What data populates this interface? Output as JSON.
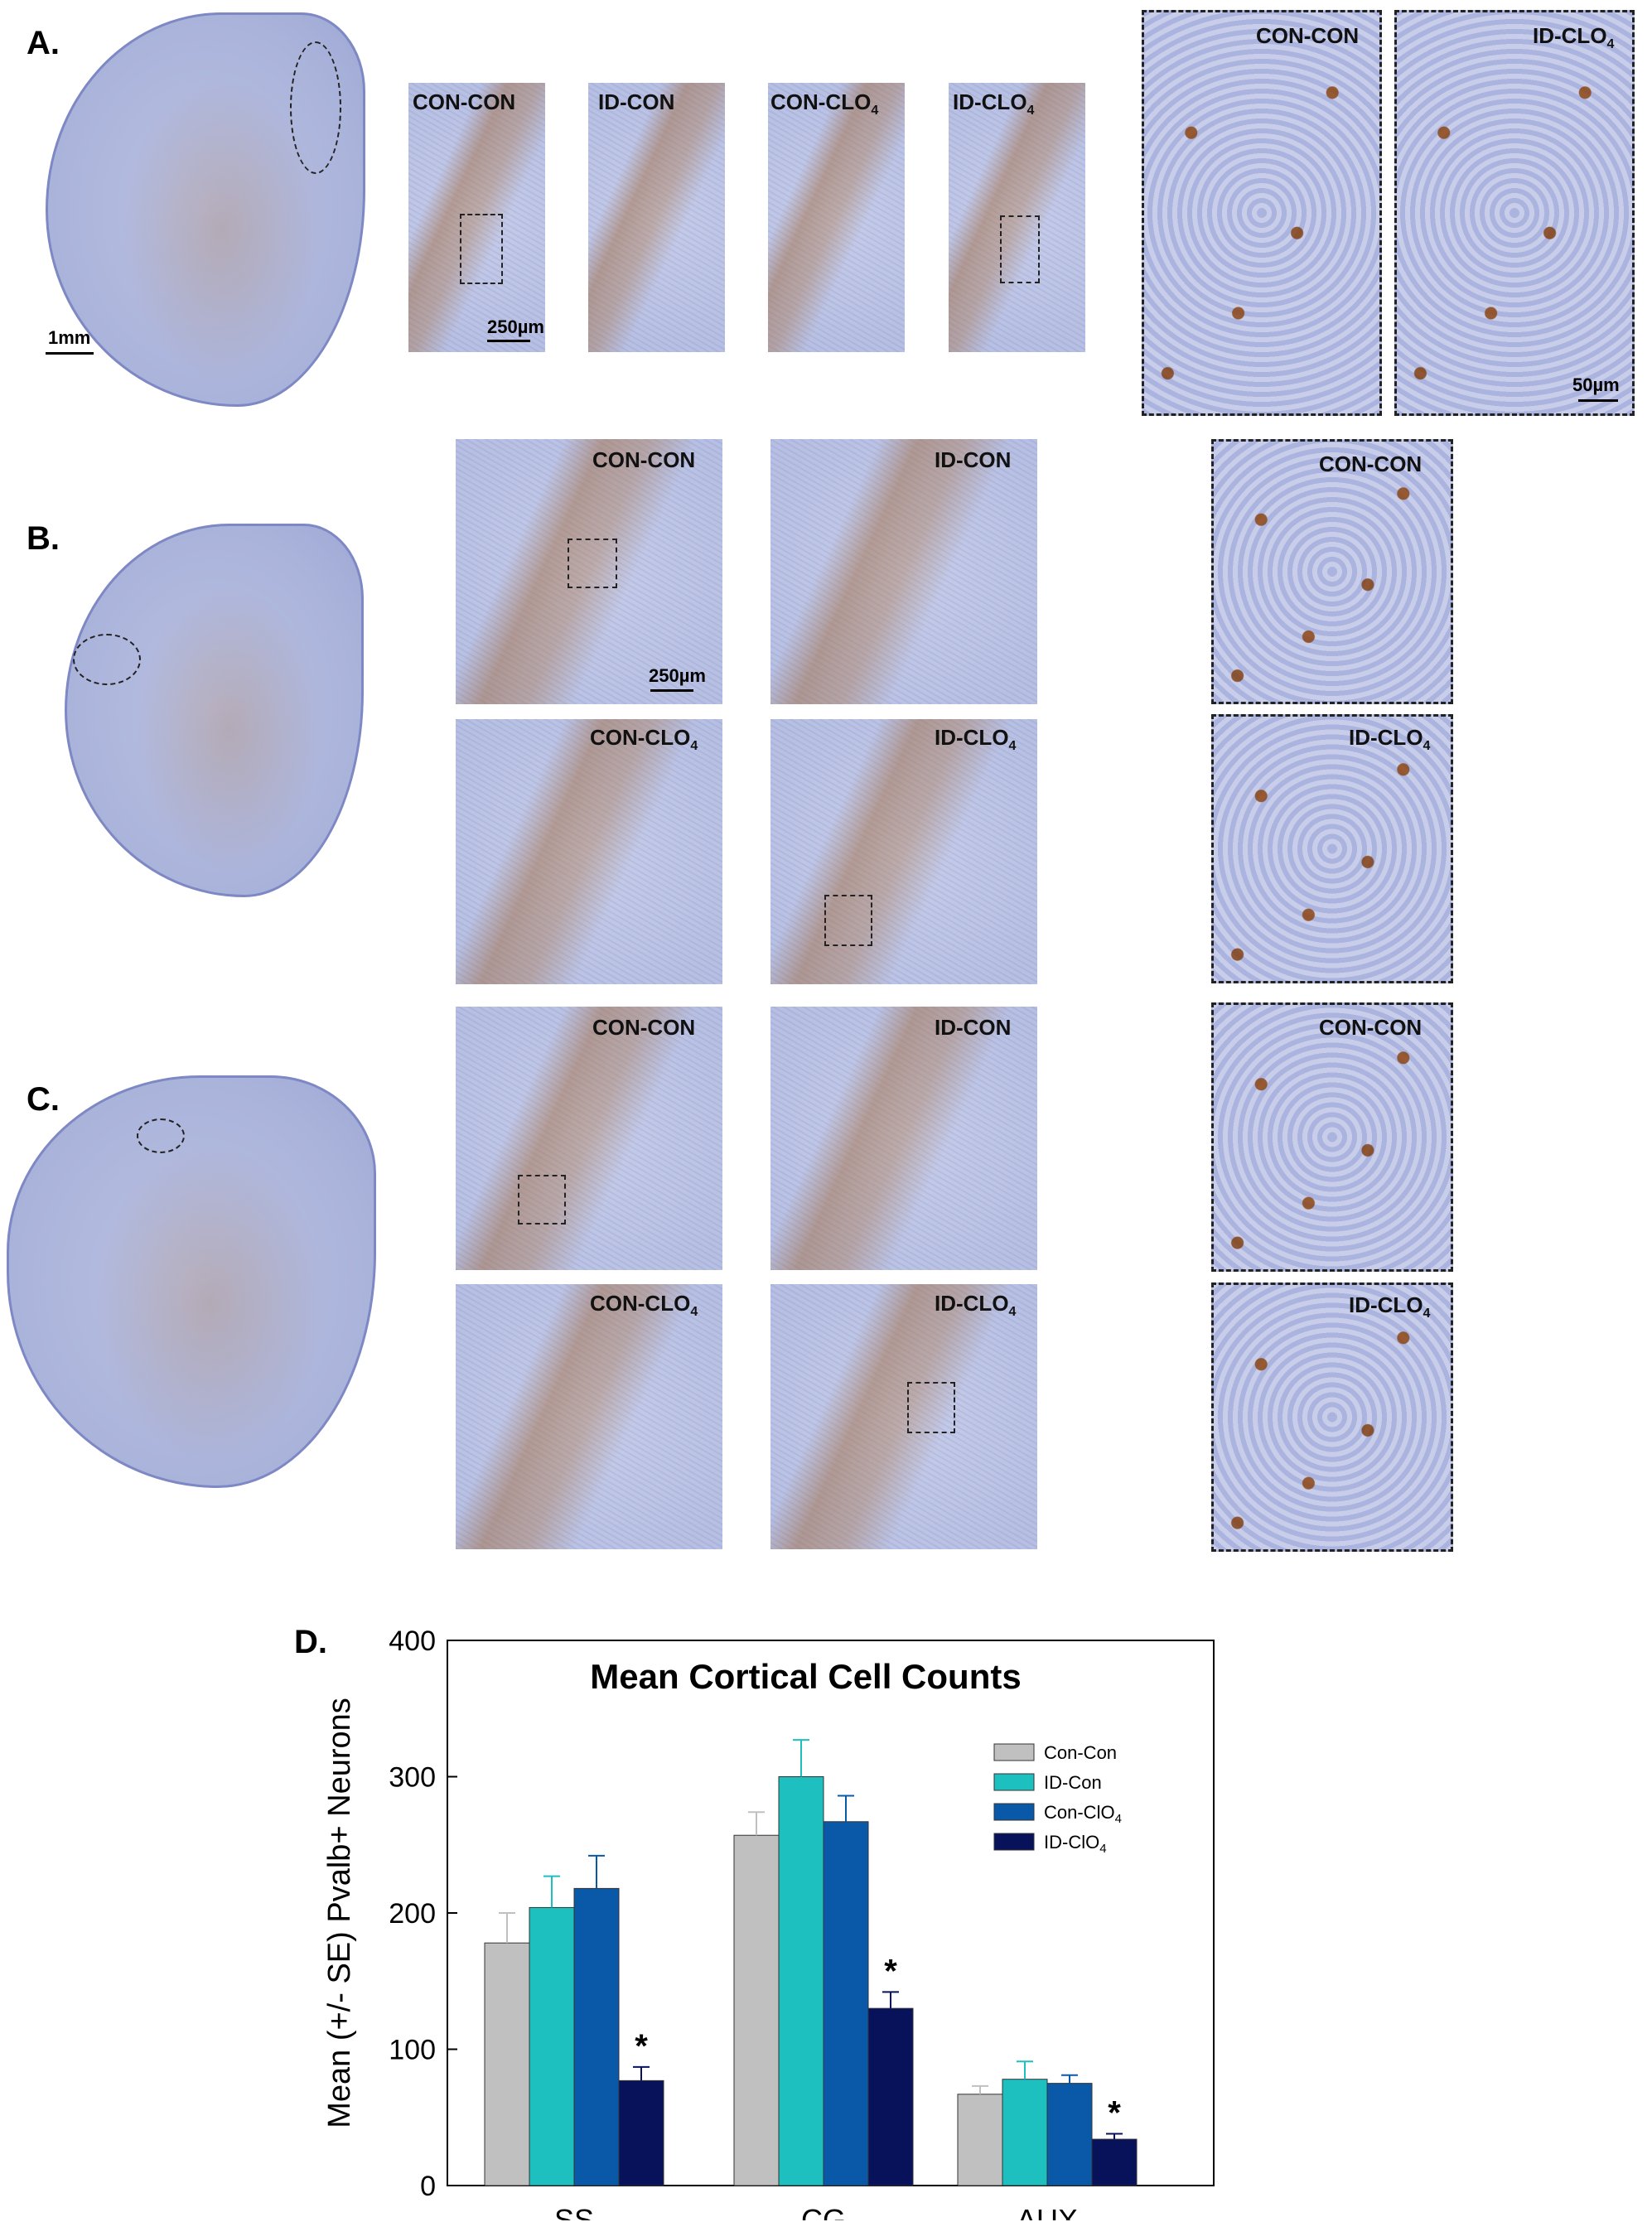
{
  "figure": {
    "panels": {
      "a": {
        "letter": "A.",
        "labels": [
          "CON-CON",
          "ID-CON",
          "CON-CLO",
          "ID-CLO"
        ],
        "zoom_labels": [
          "CON-CON",
          "ID-CLO"
        ],
        "scale_whole": "1mm",
        "scale_mid": "250µm",
        "scale_zoom": "50µm"
      },
      "b": {
        "letter": "B.",
        "labels": [
          "CON-CON",
          "ID-CON",
          "CON-CLO",
          "ID-CLO"
        ],
        "zoom_labels": [
          "CON-CON",
          "ID-CLO"
        ],
        "scale_mid": "250µm"
      },
      "c": {
        "letter": "C.",
        "labels": [
          "CON-CON",
          "ID-CON",
          "CON-CLO",
          "ID-CLO"
        ],
        "zoom_labels": [
          "CON-CON",
          "ID-CLO"
        ]
      },
      "d": {
        "letter": "D."
      }
    },
    "subscript": "4"
  },
  "chart_data": {
    "type": "bar",
    "title": "Mean Cortical Cell Counts",
    "ylabel": "Mean (+/- SE) Pvalb+ Neurons",
    "xlabel": "",
    "categories": [
      "SS",
      "CG",
      "AUX"
    ],
    "ylim": [
      0,
      400
    ],
    "yticks": [
      0,
      100,
      200,
      300,
      400
    ],
    "series": [
      {
        "name": "Con-Con",
        "name_base": "Con-Con",
        "name_sub": "",
        "color": "#c0c0c0",
        "values": [
          178,
          257,
          67
        ],
        "errors": [
          22,
          17,
          6
        ]
      },
      {
        "name": "ID-Con",
        "name_base": "ID-Con",
        "name_sub": "",
        "color": "#1ebfbf",
        "values": [
          204,
          300,
          78
        ],
        "errors": [
          23,
          27,
          13
        ]
      },
      {
        "name": "Con-ClO4",
        "name_base": "Con-ClO",
        "name_sub": "4",
        "color": "#0a58a8",
        "values": [
          218,
          267,
          75
        ],
        "errors": [
          24,
          19,
          6
        ]
      },
      {
        "name": "ID-ClO4",
        "name_base": "ID-ClO",
        "name_sub": "4",
        "color": "#07125a",
        "values": [
          77,
          130,
          34
        ],
        "errors": [
          10,
          12,
          4
        ]
      }
    ],
    "significance": [
      {
        "category": "SS",
        "series": "ID-ClO4",
        "mark": "*"
      },
      {
        "category": "CG",
        "series": "ID-ClO4",
        "mark": "*"
      },
      {
        "category": "AUX",
        "series": "ID-ClO4",
        "mark": "*"
      }
    ],
    "legend_position": "top-right"
  }
}
